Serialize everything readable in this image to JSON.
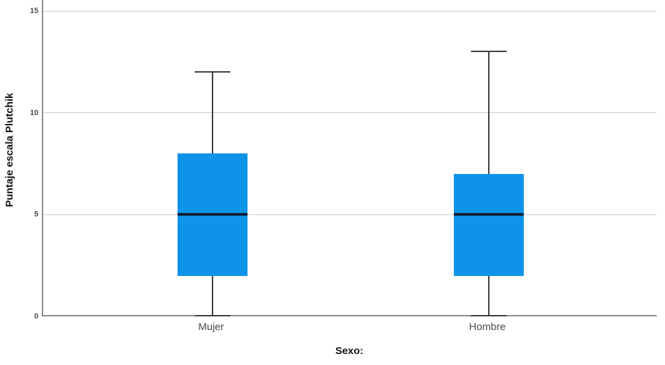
{
  "chart_data": {
    "type": "boxplot",
    "title": "",
    "xlabel": "Sexo:",
    "ylabel": "Puntaje escala Plutchik",
    "categories": [
      "Mujer",
      "Hombre"
    ],
    "yticks": [
      0,
      5,
      10,
      15
    ],
    "ylim": [
      0,
      15.5
    ],
    "grid": "horizontal gridlines at 5, 10, 15",
    "legend": "none",
    "series": [
      {
        "category": "Mujer",
        "min": 0,
        "q1": 2,
        "median": 5,
        "q3": 8,
        "max": 12,
        "outliers": []
      },
      {
        "category": "Hombre",
        "min": 0,
        "q1": 2,
        "median": 5,
        "q3": 7,
        "max": 13,
        "outliers": []
      }
    ],
    "colors": {
      "box_fill": "#0d94e8",
      "median": "#0e2238",
      "whisker": "#3a3a3a",
      "gridline": "#c9c9c9",
      "axis": "#8a8a8a",
      "tick_text": "#4a4a4a",
      "title_text": "#111111"
    }
  }
}
